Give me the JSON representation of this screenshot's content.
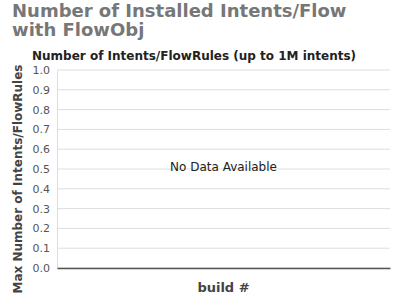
{
  "chart_data": {
    "type": "line",
    "title": "Number of Installed Intents/Flow with FlowObj",
    "subtitle": "Number of Intents/FlowRules (up to 1M intents)",
    "x_label": "build #",
    "y_label": "Max Number of Intents/FlowRules",
    "annotation": "No Data Available",
    "categories": [],
    "values": [],
    "ylim": [
      0,
      1
    ],
    "yticks": [
      {
        "value": 0,
        "label": "0.0"
      },
      0.1,
      0.2,
      0.3,
      0.4,
      0.5,
      0.6,
      0.7,
      0.8,
      0.9,
      {
        "value": 1,
        "label": "1.0"
      }
    ],
    "grid": true
  }
}
